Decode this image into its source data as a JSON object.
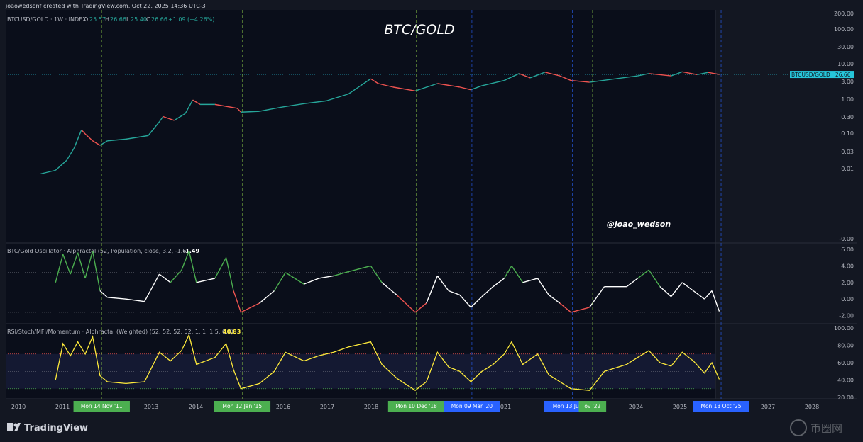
{
  "header": {
    "attribution": "joaowedsonf created with TradingView.com, Oct 22, 2025 14:36 UTC-3",
    "symbol_line": "BTCUSD/GOLD · 1W · INDEX",
    "ohlc": {
      "o_label": "O",
      "o": "25.57",
      "h_label": "H",
      "h": "26.66",
      "l_label": "L",
      "l": "25.40",
      "c_label": "C",
      "c": "26.66",
      "change": "+1.09 (+4.26%)"
    }
  },
  "watermarks": {
    "title": "BTC/GOLD",
    "handle": "@joao_wedson"
  },
  "price_tag": {
    "label": "BTCUSD/GOLD",
    "value": "26.66"
  },
  "oscillator": {
    "title": "BTC/Gold Oscillator · Alphractal (52, Population, close, 3.2, -1.6)",
    "value": "-1.49"
  },
  "rsi": {
    "title": "RSI/Stoch/MFI/Momentum · Alphractal (Weighted) (52, 52, 52, 52, 1, 1, 1.5, 0.8)",
    "value": "40.83"
  },
  "x_axis": {
    "years": [
      "2010",
      "2011",
      "2013",
      "2014",
      "2016",
      "2017",
      "2018",
      "2021",
      "2024",
      "2025",
      "2027",
      "2028"
    ],
    "markers": [
      "Mon 14 Nov '11",
      "Mon 12 Jan '15",
      "Mon 10 Dec '18",
      "Mon 09 Mar '20",
      "Mon 13 Jun '22",
      "ov '22",
      "Mon 13 Oct '25"
    ]
  },
  "footer": {
    "logo_text": "TradingView",
    "corner_mark": "币圈网"
  },
  "colors": {
    "bg": "#131722",
    "price_up": "#26a69a",
    "price_down": "#ef5350",
    "osc_line": "#ffffff",
    "osc_hi": "#4caf50",
    "osc_lo": "#ef5350",
    "rsi_line": "#ffeb3b",
    "tag_bg": "#26c6da",
    "green_marker": "#4caf50",
    "blue_marker": "#2962ff"
  },
  "chart_data": [
    {
      "type": "line",
      "y_scale": "log",
      "series": [
        {
          "name": "BTCUSD/GOLD",
          "points": [
            [
              "2010-07",
              5e-05
            ],
            [
              "2010-11",
              8e-05
            ],
            [
              "2011-02",
              0.0003
            ],
            [
              "2011-04",
              0.0015
            ],
            [
              "2011-06",
              0.017
            ],
            [
              "2011-07",
              0.01
            ],
            [
              "2011-09",
              0.004
            ],
            [
              "2011-11",
              0.0022
            ],
            [
              "2012-01",
              0.004
            ],
            [
              "2012-06",
              0.005
            ],
            [
              "2012-12",
              0.008
            ],
            [
              "2013-03",
              0.05
            ],
            [
              "2013-04",
              0.1
            ],
            [
              "2013-07",
              0.06
            ],
            [
              "2013-10",
              0.15
            ],
            [
              "2013-12",
              0.9
            ],
            [
              "2014-02",
              0.5
            ],
            [
              "2014-06",
              0.5
            ],
            [
              "2014-12",
              0.3
            ],
            [
              "2015-01",
              0.18
            ],
            [
              "2015-06",
              0.2
            ],
            [
              "2015-12",
              0.35
            ],
            [
              "2016-06",
              0.55
            ],
            [
              "2016-12",
              0.8
            ],
            [
              "2017-06",
              2.0
            ],
            [
              "2017-12",
              15
            ],
            [
              "2018-02",
              8
            ],
            [
              "2018-06",
              5
            ],
            [
              "2018-12",
              3.0
            ],
            [
              "2019-06",
              8
            ],
            [
              "2019-12",
              5
            ],
            [
              "2020-03",
              3.5
            ],
            [
              "2020-06",
              6
            ],
            [
              "2020-12",
              12
            ],
            [
              "2021-04",
              30
            ],
            [
              "2021-07",
              17
            ],
            [
              "2021-11",
              36
            ],
            [
              "2022-03",
              22
            ],
            [
              "2022-06",
              12
            ],
            [
              "2022-11",
              9.5
            ],
            [
              "2023-06",
              15
            ],
            [
              "2023-12",
              22
            ],
            [
              "2024-03",
              30
            ],
            [
              "2024-09",
              22
            ],
            [
              "2024-12",
              38
            ],
            [
              "2025-04",
              26
            ],
            [
              "2025-07",
              35
            ],
            [
              "2025-10",
              26.66
            ]
          ]
        }
      ],
      "y_ticks": [
        "200.00",
        "100.00",
        "30.00",
        "10.00",
        "3.00",
        "1.00",
        "0.30",
        "0.10",
        "0.03",
        "0.01",
        "-0.00"
      ]
    },
    {
      "type": "line",
      "y_ticks": [
        "6.00",
        "4.00",
        "2.00",
        "0.00",
        "-2.00"
      ],
      "ylim": [
        -2.5,
        6.5
      ],
      "bands": [
        3.2,
        -1.6
      ],
      "series": [
        {
          "name": "BTC/Gold Oscillator",
          "points": [
            [
              "2010-11",
              2.0
            ],
            [
              "2011-01",
              5.4
            ],
            [
              "2011-03",
              3.0
            ],
            [
              "2011-05",
              5.6
            ],
            [
              "2011-07",
              2.5
            ],
            [
              "2011-09",
              5.8
            ],
            [
              "2011-11",
              1.0
            ],
            [
              "2012-01",
              0.2
            ],
            [
              "2012-06",
              0.0
            ],
            [
              "2012-11",
              -0.3
            ],
            [
              "2013-03",
              3.0
            ],
            [
              "2013-06",
              2.0
            ],
            [
              "2013-09",
              3.5
            ],
            [
              "2013-11",
              5.8
            ],
            [
              "2014-01",
              2.0
            ],
            [
              "2014-06",
              2.5
            ],
            [
              "2014-09",
              5.0
            ],
            [
              "2014-11",
              1.0
            ],
            [
              "2015-01",
              -1.6
            ],
            [
              "2015-06",
              -0.5
            ],
            [
              "2015-10",
              1.0
            ],
            [
              "2016-01",
              3.2
            ],
            [
              "2016-06",
              1.8
            ],
            [
              "2016-10",
              2.5
            ],
            [
              "2017-02",
              2.8
            ],
            [
              "2017-06",
              3.3
            ],
            [
              "2017-12",
              4.0
            ],
            [
              "2018-03",
              2.0
            ],
            [
              "2018-07",
              0.5
            ],
            [
              "2018-12",
              -1.6
            ],
            [
              "2019-03",
              -0.5
            ],
            [
              "2019-06",
              2.8
            ],
            [
              "2019-09",
              1.0
            ],
            [
              "2019-12",
              0.5
            ],
            [
              "2020-03",
              -1.0
            ],
            [
              "2020-06",
              0.3
            ],
            [
              "2020-09",
              1.5
            ],
            [
              "2020-12",
              2.5
            ],
            [
              "2021-02",
              4.0
            ],
            [
              "2021-05",
              2.0
            ],
            [
              "2021-09",
              2.5
            ],
            [
              "2021-12",
              0.5
            ],
            [
              "2022-03",
              -0.5
            ],
            [
              "2022-06",
              -1.6
            ],
            [
              "2022-11",
              -1.0
            ],
            [
              "2023-03",
              1.5
            ],
            [
              "2023-09",
              1.5
            ],
            [
              "2023-12",
              2.5
            ],
            [
              "2024-03",
              3.5
            ],
            [
              "2024-06",
              1.5
            ],
            [
              "2024-09",
              0.3
            ],
            [
              "2024-12",
              2.0
            ],
            [
              "2025-03",
              1.0
            ],
            [
              "2025-06",
              0.0
            ],
            [
              "2025-08",
              1.0
            ],
            [
              "2025-10",
              -1.49
            ]
          ]
        }
      ]
    },
    {
      "type": "line",
      "y_ticks": [
        "100.00",
        "80.00",
        "60.00",
        "40.00",
        "20.00"
      ],
      "ylim": [
        20,
        100
      ],
      "bands": [
        70,
        50,
        30
      ],
      "series": [
        {
          "name": "RSI/Stoch/MFI/Momentum",
          "points": [
            [
              "2010-11",
              40
            ],
            [
              "2011-01",
              82
            ],
            [
              "2011-03",
              68
            ],
            [
              "2011-05",
              84
            ],
            [
              "2011-07",
              70
            ],
            [
              "2011-09",
              90
            ],
            [
              "2011-11",
              45
            ],
            [
              "2012-01",
              38
            ],
            [
              "2012-06",
              36
            ],
            [
              "2012-11",
              38
            ],
            [
              "2013-03",
              72
            ],
            [
              "2013-06",
              62
            ],
            [
              "2013-09",
              74
            ],
            [
              "2013-11",
              92
            ],
            [
              "2014-01",
              58
            ],
            [
              "2014-06",
              66
            ],
            [
              "2014-09",
              82
            ],
            [
              "2014-11",
              52
            ],
            [
              "2015-01",
              30
            ],
            [
              "2015-06",
              36
            ],
            [
              "2015-10",
              50
            ],
            [
              "2016-01",
              72
            ],
            [
              "2016-06",
              62
            ],
            [
              "2016-10",
              68
            ],
            [
              "2017-02",
              72
            ],
            [
              "2017-06",
              78
            ],
            [
              "2017-12",
              84
            ],
            [
              "2018-03",
              58
            ],
            [
              "2018-07",
              42
            ],
            [
              "2018-12",
              28
            ],
            [
              "2019-03",
              38
            ],
            [
              "2019-06",
              72
            ],
            [
              "2019-09",
              55
            ],
            [
              "2019-12",
              50
            ],
            [
              "2020-03",
              38
            ],
            [
              "2020-06",
              50
            ],
            [
              "2020-09",
              58
            ],
            [
              "2020-12",
              70
            ],
            [
              "2021-02",
              84
            ],
            [
              "2021-05",
              58
            ],
            [
              "2021-09",
              70
            ],
            [
              "2021-12",
              46
            ],
            [
              "2022-03",
              38
            ],
            [
              "2022-06",
              30
            ],
            [
              "2022-11",
              28
            ],
            [
              "2023-03",
              50
            ],
            [
              "2023-09",
              58
            ],
            [
              "2023-12",
              66
            ],
            [
              "2024-03",
              74
            ],
            [
              "2024-06",
              60
            ],
            [
              "2024-09",
              56
            ],
            [
              "2024-12",
              72
            ],
            [
              "2025-03",
              62
            ],
            [
              "2025-06",
              48
            ],
            [
              "2025-08",
              60
            ],
            [
              "2025-10",
              40.83
            ]
          ]
        }
      ]
    }
  ]
}
